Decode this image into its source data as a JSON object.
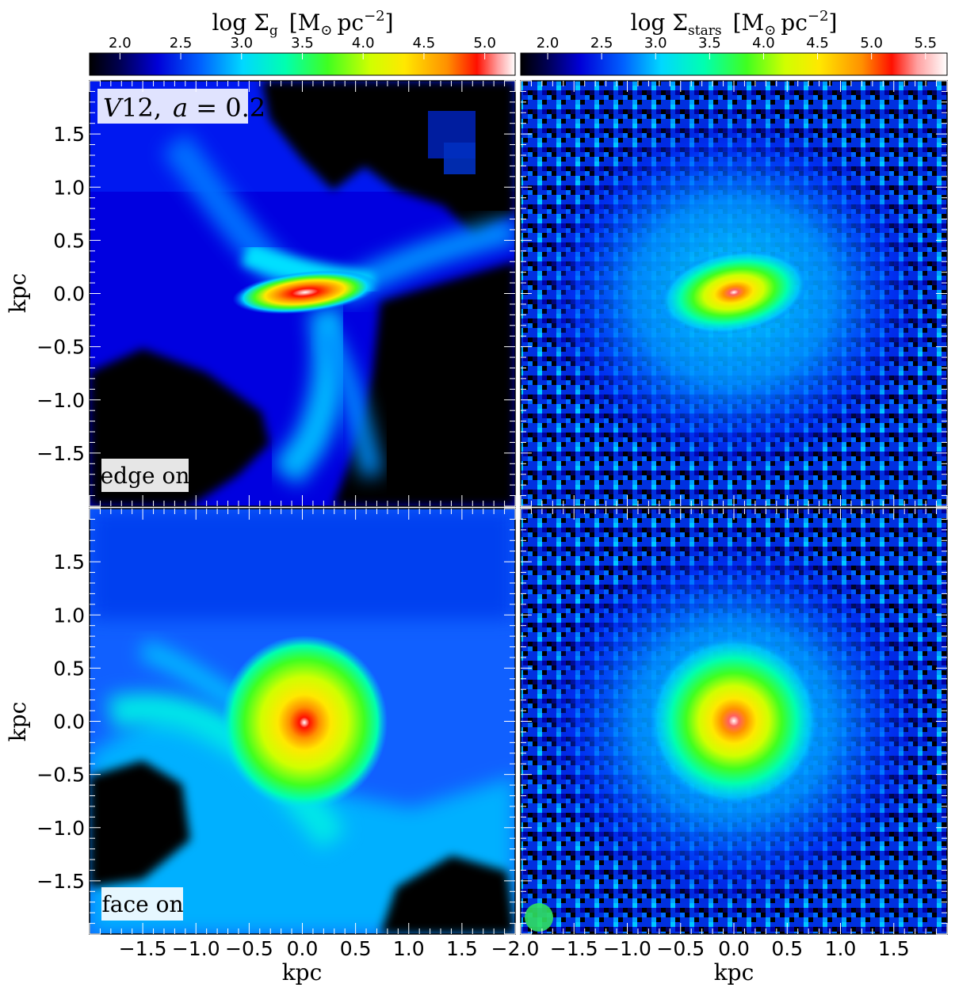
{
  "figure": {
    "colorbars": [
      {
        "label_main": "log Σ",
        "label_sub": "g",
        "label_unit_open": "[M",
        "label_unit_sun": "⊙",
        "label_unit_pc": "pc",
        "label_unit_exp": "−2",
        "label_unit_close": "]",
        "ticks": [
          "2.0",
          "2.5",
          "3.0",
          "3.5",
          "4.0",
          "4.5",
          "5.0"
        ],
        "tick_values": [
          2.0,
          2.5,
          3.0,
          3.5,
          4.0,
          4.5,
          5.0
        ],
        "range": [
          1.75,
          5.25
        ]
      },
      {
        "label_main": "log Σ",
        "label_sub": "stars",
        "label_unit_open": "[M",
        "label_unit_sun": "⊙",
        "label_unit_pc": "pc",
        "label_unit_exp": "−2",
        "label_unit_close": "]",
        "ticks": [
          "2.0",
          "2.5",
          "3.0",
          "3.5",
          "4.0",
          "4.5",
          "5.0",
          "5.5"
        ],
        "tick_values": [
          2.0,
          2.5,
          3.0,
          3.5,
          4.0,
          4.5,
          5.0,
          5.5
        ],
        "range": [
          1.75,
          5.7
        ]
      }
    ],
    "panel_labels": {
      "top_left_title": "V12,  a = 0.2",
      "top_left_title_v": "V",
      "top_left_title_num": "12,",
      "top_left_title_a": "a",
      "top_left_title_eq": " = 0.2",
      "edge": "edge on",
      "face": "face on"
    },
    "axes": {
      "x_label": "kpc",
      "y_label": "kpc",
      "x_ticks_left": [
        "−1.5",
        "−1.0",
        "−0.5",
        "0.0",
        "0.5",
        "1.0",
        "1.5",
        "−2.0"
      ],
      "x_ticks_right": [
        "−1.5",
        "−1.0",
        "−0.5",
        "0.0",
        "0.5",
        "1.0",
        "1.5"
      ],
      "y_ticks": [
        "1.5",
        "1.0",
        "0.5",
        "0.0",
        "−0.5",
        "−1.0",
        "−1.5"
      ]
    }
  },
  "chart_data": [
    {
      "type": "heatmap",
      "panel": "top-left",
      "quantity": "log Σ_g",
      "view": "edge on",
      "xlim": [
        -2.0,
        2.0
      ],
      "ylim": [
        -2.0,
        2.0
      ],
      "xlabel": "",
      "ylabel": "kpc",
      "peak": {
        "x": 0.0,
        "y": 0.0,
        "value": 5.1
      },
      "features": "elongated dense disc along x; filaments toward upper-left, upper-right and lower-centre; empty regions lower-left and right"
    },
    {
      "type": "heatmap",
      "panel": "top-right",
      "quantity": "log Σ_stars",
      "view": "edge on",
      "xlim": [
        -2.0,
        2.0
      ],
      "ylim": [
        -2.0,
        2.0
      ],
      "peak": {
        "x": 0.0,
        "y": 0.0,
        "value": 5.6
      },
      "features": "flattened stellar bulge with noisy particle halo"
    },
    {
      "type": "heatmap",
      "panel": "bottom-left",
      "quantity": "log Σ_g",
      "view": "face on",
      "xlim": [
        -2.0,
        2.0
      ],
      "ylim": [
        -2.0,
        2.0
      ],
      "xlabel": "kpc",
      "ylabel": "kpc",
      "peak": {
        "x": 0.0,
        "y": 0.0,
        "value": 5.1
      },
      "features": "round dense core, diffuse gas filaments"
    },
    {
      "type": "heatmap",
      "panel": "bottom-right",
      "quantity": "log Σ_stars",
      "view": "face on",
      "xlim": [
        -2.0,
        2.0
      ],
      "ylim": [
        -2.0,
        2.0
      ],
      "xlabel": "kpc",
      "ylabel": "",
      "peak": {
        "x": 0.0,
        "y": 0.0,
        "value": 5.6
      },
      "features": "round stellar core with noisy halo; small satellite near lower-left corner"
    }
  ]
}
